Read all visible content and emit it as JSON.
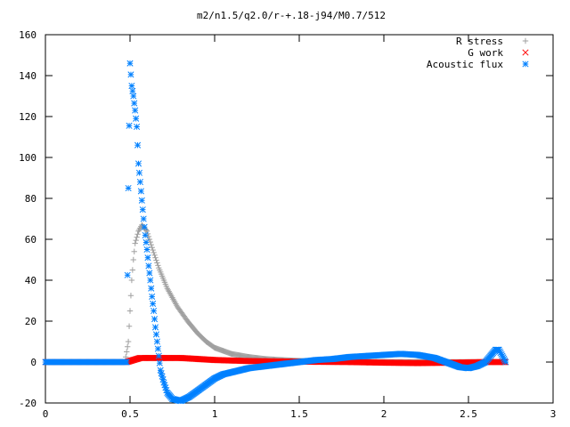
{
  "chart_data": {
    "type": "scatter",
    "title": "m2/n1.5/q2.0/r-+.18-j94/M0.7/512",
    "xlabel": "",
    "ylabel": "",
    "xlim": [
      0,
      3
    ],
    "ylim": [
      -20,
      160
    ],
    "x_ticks": [
      0,
      0.5,
      1,
      1.5,
      2,
      2.5,
      3
    ],
    "x_tick_labels": [
      "0",
      "0.5",
      "1",
      "1.5",
      "2",
      "2.5",
      "3"
    ],
    "y_ticks": [
      -20,
      0,
      20,
      40,
      60,
      80,
      100,
      120,
      140,
      160
    ],
    "y_tick_labels": [
      "-20",
      "0",
      "20",
      "40",
      "60",
      "80",
      "100",
      "120",
      "140",
      "160"
    ],
    "grid": false,
    "legend_position": "top-right",
    "series": [
      {
        "name": "R stress",
        "marker": "plus",
        "color": "#a0a0a0",
        "points": [
          [
            0,
            0
          ],
          [
            0.2,
            0
          ],
          [
            0.4,
            0
          ],
          [
            0.47,
            0
          ],
          [
            0.49,
            10
          ],
          [
            0.5,
            25
          ],
          [
            0.51,
            40
          ],
          [
            0.52,
            50
          ],
          [
            0.53,
            58
          ],
          [
            0.55,
            64
          ],
          [
            0.57,
            67
          ],
          [
            0.6,
            64
          ],
          [
            0.63,
            56
          ],
          [
            0.67,
            46
          ],
          [
            0.72,
            36
          ],
          [
            0.78,
            27
          ],
          [
            0.84,
            20
          ],
          [
            0.9,
            14
          ],
          [
            0.95,
            10
          ],
          [
            1.0,
            7
          ],
          [
            1.1,
            4
          ],
          [
            1.2,
            2.5
          ],
          [
            1.3,
            1.5
          ],
          [
            1.4,
            1
          ],
          [
            1.5,
            0.6
          ],
          [
            1.7,
            0.3
          ],
          [
            2.0,
            0.1
          ],
          [
            2.4,
            0
          ],
          [
            2.7,
            0
          ]
        ]
      },
      {
        "name": "G work",
        "marker": "cross",
        "color": "#ff0000",
        "points": [
          [
            0,
            0
          ],
          [
            0.3,
            0
          ],
          [
            0.48,
            0
          ],
          [
            0.52,
            1
          ],
          [
            0.56,
            2
          ],
          [
            0.6,
            2
          ],
          [
            0.7,
            2
          ],
          [
            0.8,
            2
          ],
          [
            0.9,
            1.5
          ],
          [
            1.0,
            1
          ],
          [
            1.2,
            0.5
          ],
          [
            1.5,
            0.2
          ],
          [
            1.8,
            0
          ],
          [
            2.0,
            -0.3
          ],
          [
            2.2,
            -0.5
          ],
          [
            2.4,
            -0.3
          ],
          [
            2.6,
            0
          ],
          [
            2.72,
            0
          ]
        ]
      },
      {
        "name": "Acoustic flux",
        "marker": "star",
        "color": "#0080ff",
        "points": [
          [
            0,
            0
          ],
          [
            0.2,
            0
          ],
          [
            0.4,
            0
          ],
          [
            0.46,
            0
          ],
          [
            0.48,
            0
          ],
          [
            0.49,
            85
          ],
          [
            0.5,
            146
          ],
          [
            0.51,
            135
          ],
          [
            0.52,
            130
          ],
          [
            0.53,
            123
          ],
          [
            0.54,
            115
          ],
          [
            0.545,
            106
          ],
          [
            0.55,
            97
          ],
          [
            0.56,
            88
          ],
          [
            0.57,
            79
          ],
          [
            0.58,
            70
          ],
          [
            0.59,
            62
          ],
          [
            0.6,
            55
          ],
          [
            0.61,
            47
          ],
          [
            0.62,
            40
          ],
          [
            0.63,
            32
          ],
          [
            0.64,
            25
          ],
          [
            0.65,
            17
          ],
          [
            0.66,
            10
          ],
          [
            0.67,
            3
          ],
          [
            0.68,
            -4
          ],
          [
            0.7,
            -10
          ],
          [
            0.72,
            -15
          ],
          [
            0.75,
            -18
          ],
          [
            0.8,
            -19
          ],
          [
            0.85,
            -17
          ],
          [
            0.9,
            -14
          ],
          [
            0.95,
            -11
          ],
          [
            1.0,
            -8
          ],
          [
            1.05,
            -6
          ],
          [
            1.1,
            -5
          ],
          [
            1.2,
            -3
          ],
          [
            1.3,
            -2
          ],
          [
            1.4,
            -1
          ],
          [
            1.5,
            0
          ],
          [
            1.6,
            1
          ],
          [
            1.7,
            1.5
          ],
          [
            1.8,
            2.5
          ],
          [
            1.9,
            3
          ],
          [
            2.0,
            3.5
          ],
          [
            2.1,
            4
          ],
          [
            2.2,
            3.5
          ],
          [
            2.3,
            2
          ],
          [
            2.4,
            -1
          ],
          [
            2.45,
            -2.5
          ],
          [
            2.5,
            -3
          ],
          [
            2.55,
            -2
          ],
          [
            2.6,
            0
          ],
          [
            2.63,
            3
          ],
          [
            2.66,
            6
          ],
          [
            2.68,
            6
          ],
          [
            2.7,
            3
          ],
          [
            2.72,
            0
          ]
        ]
      }
    ]
  }
}
